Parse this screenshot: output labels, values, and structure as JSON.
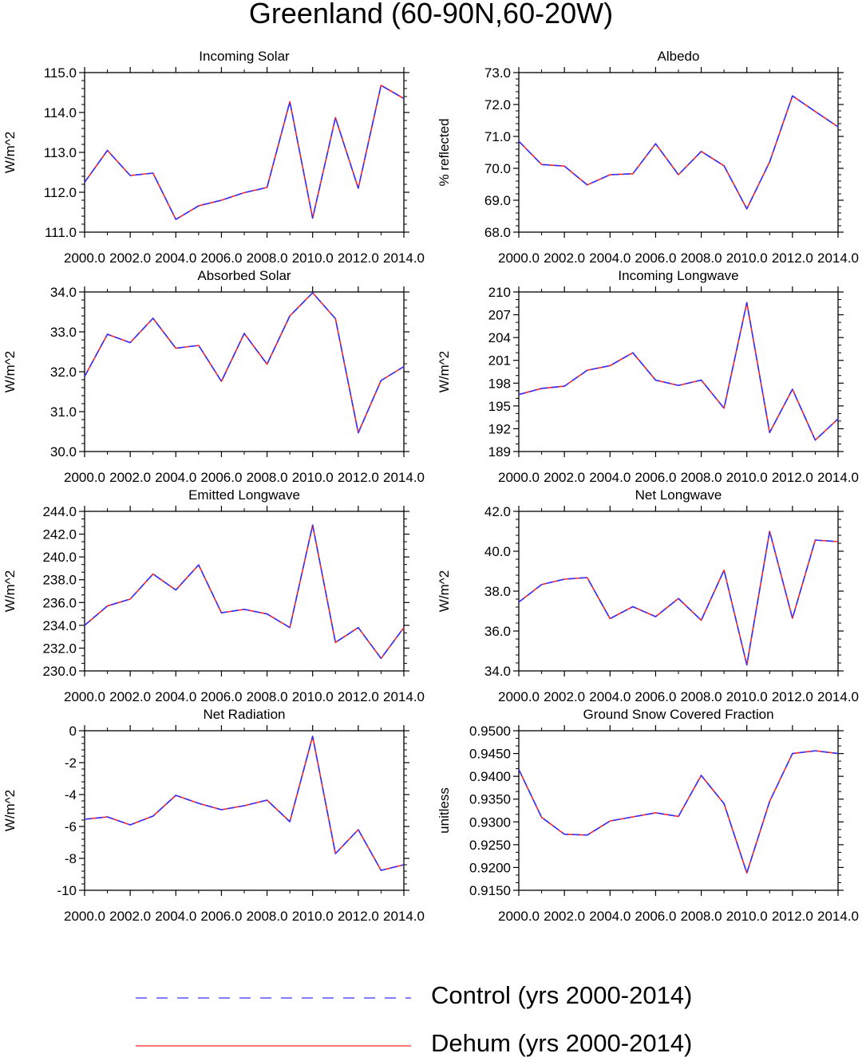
{
  "title": "Greenland (60-90N,60-20W)",
  "colors": {
    "control": "#3333ff",
    "dehum": "#ff2020",
    "axis": "#000000"
  },
  "legend": [
    {
      "label": "Control (yrs 2000-2014)",
      "style": "dashed",
      "color": "#3333ff"
    },
    {
      "label": "Dehum (yrs 2000-2014)",
      "style": "solid",
      "color": "#ff2020"
    }
  ],
  "chart_data": [
    {
      "type": "line",
      "title": "Incoming Solar",
      "ylabel": "W/m^2",
      "x": [
        2000,
        2001,
        2002,
        2003,
        2004,
        2005,
        2006,
        2007,
        2008,
        2009,
        2010,
        2011,
        2012,
        2013,
        2014
      ],
      "xlim": [
        2000,
        2014
      ],
      "xticks": [
        2000,
        2002,
        2004,
        2006,
        2008,
        2010,
        2012,
        2014
      ],
      "xtick_labels": [
        "2000.0",
        "2002.0",
        "2004.0",
        "2006.0",
        "2008.0",
        "2010.0",
        "2012.0",
        "2014.0"
      ],
      "ylim": [
        111,
        115
      ],
      "yticks": [
        111,
        112,
        113,
        114,
        115
      ],
      "ytick_labels": [
        "111.0",
        "112.0",
        "113.0",
        "114.0",
        "115.0"
      ],
      "series": [
        {
          "name": "Control (yrs 2000-2014)",
          "values": [
            112.25,
            113.05,
            112.42,
            112.48,
            111.32,
            111.66,
            111.8,
            111.99,
            112.12,
            114.27,
            111.35,
            113.87,
            112.1,
            114.68,
            114.35
          ]
        },
        {
          "name": "Dehum (yrs 2000-2014)",
          "values": [
            112.25,
            113.05,
            112.42,
            112.48,
            111.32,
            111.66,
            111.8,
            111.99,
            112.12,
            114.27,
            111.35,
            113.87,
            112.1,
            114.68,
            114.35
          ]
        }
      ]
    },
    {
      "type": "line",
      "title": "Albedo",
      "ylabel": "% reflected",
      "x": [
        2000,
        2001,
        2002,
        2003,
        2004,
        2005,
        2006,
        2007,
        2008,
        2009,
        2010,
        2011,
        2012,
        2013,
        2014
      ],
      "xlim": [
        2000,
        2014
      ],
      "xticks": [
        2000,
        2002,
        2004,
        2006,
        2008,
        2010,
        2012,
        2014
      ],
      "xtick_labels": [
        "2000.0",
        "2002.0",
        "2004.0",
        "2006.0",
        "2008.0",
        "2010.0",
        "2012.0",
        "2014.0"
      ],
      "ylim": [
        68,
        73
      ],
      "yticks": [
        68,
        69,
        70,
        71,
        72,
        73
      ],
      "ytick_labels": [
        "68.0",
        "69.0",
        "70.0",
        "71.0",
        "72.0",
        "73.0"
      ],
      "series": [
        {
          "name": "Control (yrs 2000-2014)",
          "values": [
            70.85,
            70.12,
            70.07,
            69.48,
            69.8,
            69.83,
            70.77,
            69.8,
            70.53,
            70.08,
            68.73,
            70.2,
            72.27,
            71.78,
            71.3
          ]
        },
        {
          "name": "Dehum (yrs 2000-2014)",
          "values": [
            70.85,
            70.12,
            70.07,
            69.48,
            69.8,
            69.83,
            70.77,
            69.8,
            70.53,
            70.08,
            68.73,
            70.2,
            72.27,
            71.78,
            71.3
          ]
        }
      ]
    },
    {
      "type": "line",
      "title": "Absorbed Solar",
      "ylabel": "W/m^2",
      "x": [
        2000,
        2001,
        2002,
        2003,
        2004,
        2005,
        2006,
        2007,
        2008,
        2009,
        2010,
        2011,
        2012,
        2013,
        2014
      ],
      "xlim": [
        2000,
        2014
      ],
      "xticks": [
        2000,
        2002,
        2004,
        2006,
        2008,
        2010,
        2012,
        2014
      ],
      "xtick_labels": [
        "2000.0",
        "2002.0",
        "2004.0",
        "2006.0",
        "2008.0",
        "2010.0",
        "2012.0",
        "2014.0"
      ],
      "ylim": [
        30,
        34
      ],
      "yticks": [
        30,
        31,
        32,
        33,
        34
      ],
      "ytick_labels": [
        "30.0",
        "31.0",
        "32.0",
        "33.0",
        "34.0"
      ],
      "series": [
        {
          "name": "Control (yrs 2000-2014)",
          "values": [
            31.88,
            32.94,
            32.73,
            33.34,
            32.59,
            32.66,
            31.76,
            32.96,
            32.19,
            33.4,
            33.98,
            33.33,
            30.47,
            31.78,
            32.13
          ]
        },
        {
          "name": "Dehum (yrs 2000-2014)",
          "values": [
            31.88,
            32.94,
            32.73,
            33.34,
            32.59,
            32.66,
            31.76,
            32.96,
            32.19,
            33.4,
            33.98,
            33.33,
            30.47,
            31.78,
            32.13
          ]
        }
      ]
    },
    {
      "type": "line",
      "title": "Incoming Longwave",
      "ylabel": "W/m^2",
      "x": [
        2000,
        2001,
        2002,
        2003,
        2004,
        2005,
        2006,
        2007,
        2008,
        2009,
        2010,
        2011,
        2012,
        2013,
        2014
      ],
      "xlim": [
        2000,
        2014
      ],
      "xticks": [
        2000,
        2002,
        2004,
        2006,
        2008,
        2010,
        2012,
        2014
      ],
      "xtick_labels": [
        "2000.0",
        "2002.0",
        "2004.0",
        "2006.0",
        "2008.0",
        "2010.0",
        "2012.0",
        "2014.0"
      ],
      "ylim": [
        189,
        210
      ],
      "yticks": [
        189,
        192,
        195,
        198,
        201,
        204,
        207,
        210
      ],
      "ytick_labels": [
        "189",
        "192",
        "195",
        "198",
        "201",
        "204",
        "207",
        "210"
      ],
      "series": [
        {
          "name": "Control (yrs 2000-2014)",
          "values": [
            196.5,
            197.3,
            197.6,
            199.7,
            200.3,
            202.0,
            198.4,
            197.7,
            198.4,
            194.7,
            208.6,
            191.5,
            197.2,
            190.5,
            193.3
          ]
        },
        {
          "name": "Dehum (yrs 2000-2014)",
          "values": [
            196.5,
            197.3,
            197.6,
            199.7,
            200.3,
            202.0,
            198.4,
            197.7,
            198.4,
            194.7,
            208.6,
            191.5,
            197.2,
            190.5,
            193.3
          ]
        }
      ]
    },
    {
      "type": "line",
      "title": "Emitted Longwave",
      "ylabel": "W/m^2",
      "x": [
        2000,
        2001,
        2002,
        2003,
        2004,
        2005,
        2006,
        2007,
        2008,
        2009,
        2010,
        2011,
        2012,
        2013,
        2014
      ],
      "xlim": [
        2000,
        2014
      ],
      "xticks": [
        2000,
        2002,
        2004,
        2006,
        2008,
        2010,
        2012,
        2014
      ],
      "xtick_labels": [
        "2000.0",
        "2002.0",
        "2004.0",
        "2006.0",
        "2008.0",
        "2010.0",
        "2012.0",
        "2014.0"
      ],
      "ylim": [
        230,
        244
      ],
      "yticks": [
        230,
        232,
        234,
        236,
        238,
        240,
        242,
        244
      ],
      "ytick_labels": [
        "230.0",
        "232.0",
        "234.0",
        "236.0",
        "238.0",
        "240.0",
        "242.0",
        "244.0"
      ],
      "series": [
        {
          "name": "Control (yrs 2000-2014)",
          "values": [
            234.0,
            235.7,
            236.3,
            238.5,
            237.1,
            239.3,
            235.1,
            235.4,
            235.0,
            233.8,
            242.8,
            232.5,
            233.8,
            231.1,
            233.8
          ]
        },
        {
          "name": "Dehum (yrs 2000-2014)",
          "values": [
            234.0,
            235.7,
            236.3,
            238.5,
            237.1,
            239.3,
            235.1,
            235.4,
            235.0,
            233.8,
            242.8,
            232.5,
            233.8,
            231.1,
            233.8
          ]
        }
      ]
    },
    {
      "type": "line",
      "title": "Net Longwave",
      "ylabel": "W/m^2",
      "x": [
        2000,
        2001,
        2002,
        2003,
        2004,
        2005,
        2006,
        2007,
        2008,
        2009,
        2010,
        2011,
        2012,
        2013,
        2014
      ],
      "xlim": [
        2000,
        2014
      ],
      "xticks": [
        2000,
        2002,
        2004,
        2006,
        2008,
        2010,
        2012,
        2014
      ],
      "xtick_labels": [
        "2000.0",
        "2002.0",
        "2004.0",
        "2006.0",
        "2008.0",
        "2010.0",
        "2012.0",
        "2014.0"
      ],
      "ylim": [
        34,
        42
      ],
      "yticks": [
        34,
        36,
        38,
        40,
        42
      ],
      "ytick_labels": [
        "34.0",
        "36.0",
        "38.0",
        "40.0",
        "42.0"
      ],
      "series": [
        {
          "name": "Control (yrs 2000-2014)",
          "values": [
            37.45,
            38.33,
            38.6,
            38.68,
            36.62,
            37.22,
            36.72,
            37.63,
            36.54,
            39.05,
            34.3,
            41.0,
            36.64,
            40.56,
            40.48
          ]
        },
        {
          "name": "Dehum (yrs 2000-2014)",
          "values": [
            37.45,
            38.33,
            38.6,
            38.68,
            36.62,
            37.22,
            36.72,
            37.63,
            36.54,
            39.05,
            34.3,
            41.0,
            36.64,
            40.56,
            40.48
          ]
        }
      ]
    },
    {
      "type": "line",
      "title": "Net Radiation",
      "ylabel": "W/m^2",
      "x": [
        2000,
        2001,
        2002,
        2003,
        2004,
        2005,
        2006,
        2007,
        2008,
        2009,
        2010,
        2011,
        2012,
        2013,
        2014
      ],
      "xlim": [
        2000,
        2014
      ],
      "xticks": [
        2000,
        2002,
        2004,
        2006,
        2008,
        2010,
        2012,
        2014
      ],
      "xtick_labels": [
        "2000.0",
        "2002.0",
        "2004.0",
        "2006.0",
        "2008.0",
        "2010.0",
        "2012.0",
        "2014.0"
      ],
      "ylim": [
        -10,
        0
      ],
      "yticks": [
        -10,
        -8,
        -6,
        -4,
        -2,
        0
      ],
      "ytick_labels": [
        "-10",
        "-8",
        "-6",
        "-4",
        "-2",
        "0"
      ],
      "series": [
        {
          "name": "Control (yrs 2000-2014)",
          "values": [
            -5.55,
            -5.4,
            -5.9,
            -5.35,
            -4.05,
            -4.55,
            -4.95,
            -4.7,
            -4.35,
            -5.7,
            -0.35,
            -7.7,
            -6.2,
            -8.75,
            -8.4
          ]
        },
        {
          "name": "Dehum (yrs 2000-2014)",
          "values": [
            -5.55,
            -5.4,
            -5.9,
            -5.35,
            -4.05,
            -4.55,
            -4.95,
            -4.7,
            -4.35,
            -5.7,
            -0.35,
            -7.7,
            -6.2,
            -8.75,
            -8.4
          ]
        }
      ]
    },
    {
      "type": "line",
      "title": "Ground Snow Covered Fraction",
      "ylabel": "unitless",
      "x": [
        2000,
        2001,
        2002,
        2003,
        2004,
        2005,
        2006,
        2007,
        2008,
        2009,
        2010,
        2011,
        2012,
        2013,
        2014
      ],
      "xlim": [
        2000,
        2014
      ],
      "xticks": [
        2000,
        2002,
        2004,
        2006,
        2008,
        2010,
        2012,
        2014
      ],
      "xtick_labels": [
        "2000.0",
        "2002.0",
        "2004.0",
        "2006.0",
        "2008.0",
        "2010.0",
        "2012.0",
        "2014.0"
      ],
      "ylim": [
        0.915,
        0.95
      ],
      "yticks": [
        0.915,
        0.92,
        0.925,
        0.93,
        0.935,
        0.94,
        0.945,
        0.95
      ],
      "ytick_labels": [
        "0.9150",
        "0.9200",
        "0.9250",
        "0.9300",
        "0.9350",
        "0.9400",
        "0.9450",
        "0.9500"
      ],
      "series": [
        {
          "name": "Control (yrs 2000-2014)",
          "values": [
            0.9415,
            0.931,
            0.9273,
            0.9271,
            0.9302,
            0.9311,
            0.932,
            0.9312,
            0.9402,
            0.934,
            0.9188,
            0.9345,
            0.945,
            0.9456,
            0.945
          ]
        },
        {
          "name": "Dehum (yrs 2000-2014)",
          "values": [
            0.9415,
            0.931,
            0.9273,
            0.9271,
            0.9302,
            0.9311,
            0.932,
            0.9312,
            0.9402,
            0.934,
            0.9188,
            0.9345,
            0.945,
            0.9456,
            0.945
          ]
        }
      ]
    }
  ]
}
